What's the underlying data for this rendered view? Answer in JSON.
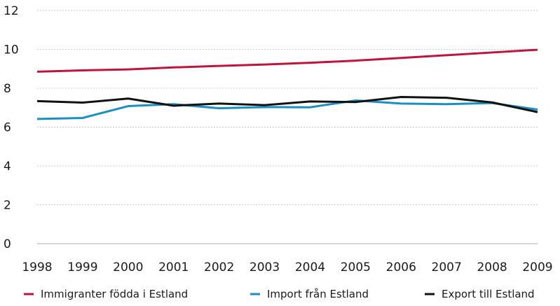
{
  "chart_data": {
    "type": "line",
    "title": "",
    "xlabel": "",
    "ylabel": "",
    "x": [
      "1998",
      "1999",
      "2000",
      "2001",
      "2002",
      "2003",
      "2004",
      "2005",
      "2006",
      "2007",
      "2008",
      "2009"
    ],
    "ylim": [
      0,
      12
    ],
    "yticks": [
      "0",
      "2",
      "4",
      "6",
      "8",
      "10",
      "12"
    ],
    "grid": true,
    "legend_position": "bottom",
    "series": [
      {
        "name": "Immigranter födda i Estland",
        "color": "#c0143c",
        "values": [
          8.85,
          8.92,
          8.97,
          9.07,
          9.15,
          9.22,
          9.31,
          9.42,
          9.56,
          9.7,
          9.84,
          9.98
        ]
      },
      {
        "name": "Import från Estland",
        "color": "#1a8fc4",
        "values": [
          6.42,
          6.47,
          7.08,
          7.18,
          6.97,
          7.03,
          7.02,
          7.37,
          7.21,
          7.18,
          7.24,
          6.9
        ]
      },
      {
        "name": "Export till Estland",
        "color": "#111111",
        "values": [
          7.34,
          7.26,
          7.47,
          7.1,
          7.21,
          7.13,
          7.32,
          7.29,
          7.55,
          7.51,
          7.27,
          6.77
        ]
      }
    ]
  }
}
